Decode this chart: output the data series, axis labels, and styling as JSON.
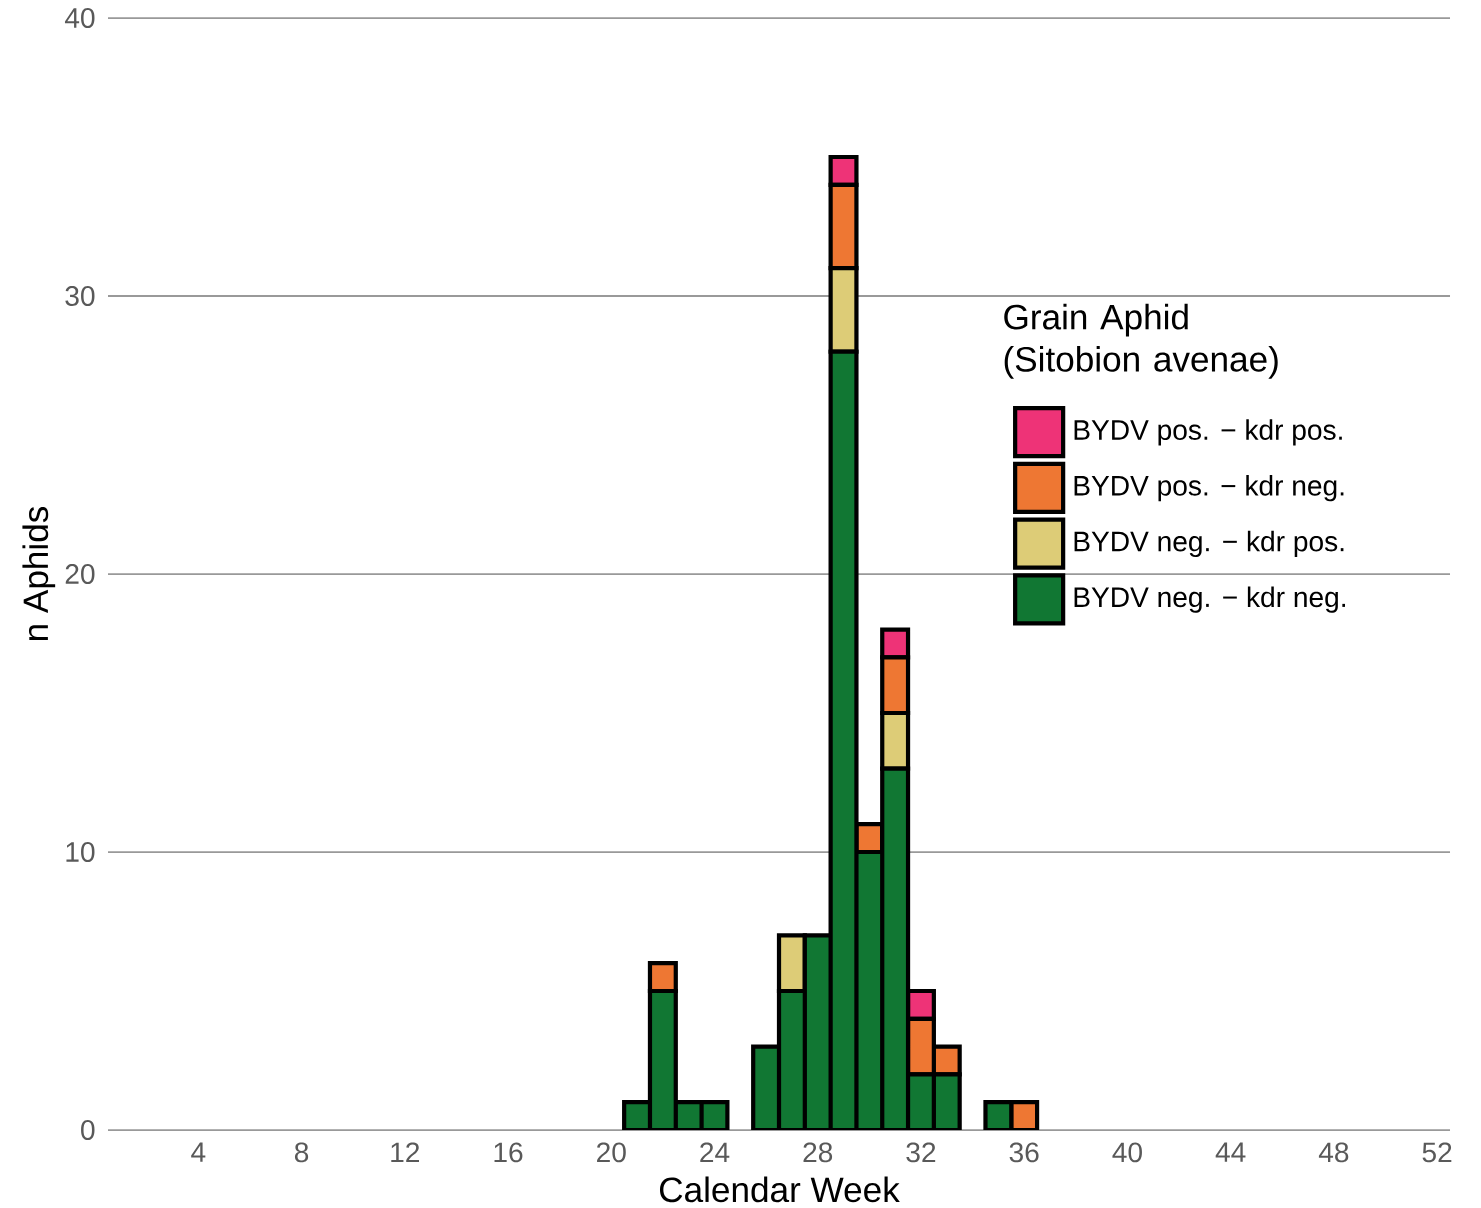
{
  "chart_data": {
    "type": "bar",
    "stacked": true,
    "xlabel": "Calendar Week",
    "ylabel": "n Aphids",
    "legend_title": "Grain Aphid (Sitobion avenae)",
    "x": [
      1,
      2,
      3,
      4,
      5,
      6,
      7,
      8,
      9,
      10,
      11,
      12,
      13,
      14,
      15,
      16,
      17,
      18,
      19,
      20,
      21,
      22,
      23,
      24,
      25,
      26,
      27,
      28,
      29,
      30,
      31,
      32,
      33,
      34,
      35,
      36,
      37,
      38,
      39,
      40,
      41,
      42,
      43,
      44,
      45,
      46,
      47,
      48,
      49,
      50,
      51,
      52
    ],
    "xlim": [
      0.5,
      52.5
    ],
    "xticks": [
      4,
      8,
      12,
      16,
      20,
      24,
      28,
      32,
      36,
      40,
      44,
      48,
      52
    ],
    "ylim": [
      0,
      40
    ],
    "yticks": [
      0,
      10,
      20,
      30,
      40
    ],
    "grid": "y",
    "legend": "right",
    "series": [
      {
        "name": "BYDV neg. − kdr neg.",
        "color": "#117733",
        "values": [
          0,
          0,
          0,
          0,
          0,
          0,
          0,
          0,
          0,
          0,
          0,
          0,
          0,
          0,
          0,
          0,
          0,
          0,
          0,
          0,
          1,
          5,
          1,
          1,
          0,
          3,
          5,
          7,
          28,
          10,
          13,
          2,
          2,
          0,
          1,
          0,
          0,
          0,
          0,
          0,
          0,
          0,
          0,
          0,
          0,
          0,
          0,
          0,
          0,
          0,
          0,
          0
        ]
      },
      {
        "name": "BYDV neg. − kdr pos.",
        "color": "#ddcc77",
        "values": [
          0,
          0,
          0,
          0,
          0,
          0,
          0,
          0,
          0,
          0,
          0,
          0,
          0,
          0,
          0,
          0,
          0,
          0,
          0,
          0,
          0,
          0,
          0,
          0,
          0,
          0,
          2,
          0,
          3,
          0,
          2,
          0,
          0,
          0,
          0,
          0,
          0,
          0,
          0,
          0,
          0,
          0,
          0,
          0,
          0,
          0,
          0,
          0,
          0,
          0,
          0,
          0
        ]
      },
      {
        "name": "BYDV pos. − kdr neg.",
        "color": "#ee7733",
        "values": [
          0,
          0,
          0,
          0,
          0,
          0,
          0,
          0,
          0,
          0,
          0,
          0,
          0,
          0,
          0,
          0,
          0,
          0,
          0,
          0,
          0,
          1,
          0,
          0,
          0,
          0,
          0,
          0,
          3,
          1,
          2,
          2,
          1,
          0,
          0,
          1,
          0,
          0,
          0,
          0,
          0,
          0,
          0,
          0,
          0,
          0,
          0,
          0,
          0,
          0,
          0,
          0
        ]
      },
      {
        "name": "BYDV pos. − kdr pos.",
        "color": "#ee3377",
        "values": [
          0,
          0,
          0,
          0,
          0,
          0,
          0,
          0,
          0,
          0,
          0,
          0,
          0,
          0,
          0,
          0,
          0,
          0,
          0,
          0,
          0,
          0,
          0,
          0,
          0,
          0,
          0,
          0,
          1,
          0,
          1,
          1,
          0,
          0,
          0,
          0,
          0,
          0,
          0,
          0,
          0,
          0,
          0,
          0,
          0,
          0,
          0,
          0,
          0,
          0,
          0,
          0
        ]
      }
    ]
  }
}
